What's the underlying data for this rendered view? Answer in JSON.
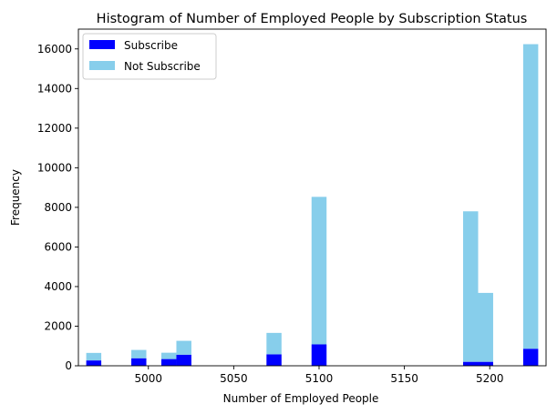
{
  "chart_data": {
    "type": "bar",
    "title": "Histogram of Number of Employed People by Subscription Status",
    "xlabel": "Number of Employed People",
    "ylabel": "Frequency",
    "xlim": [
      4959,
      5233
    ],
    "ylim": [
      0,
      17000
    ],
    "xticks": [
      5000,
      5050,
      5100,
      5150,
      5200
    ],
    "yticks": [
      0,
      2000,
      4000,
      6000,
      8000,
      10000,
      12000,
      14000,
      16000
    ],
    "grid": false,
    "legend_position": "top-left",
    "stacked": true,
    "bin_width": 8.8,
    "bin_starts": [
      4963.6,
      4990.0,
      5007.6,
      5016.4,
      5069.2,
      5095.6,
      5184.4,
      5193.2,
      5219.6
    ],
    "series": [
      {
        "name": "Subscribe",
        "color": "#0000ff",
        "values": [
          270,
          380,
          340,
          560,
          580,
          1080,
          200,
          200,
          860
        ]
      },
      {
        "name": "Not Subscribe",
        "color": "#87ceeb",
        "values": [
          380,
          420,
          320,
          700,
          1080,
          7450,
          7600,
          3480,
          15380
        ]
      }
    ]
  }
}
